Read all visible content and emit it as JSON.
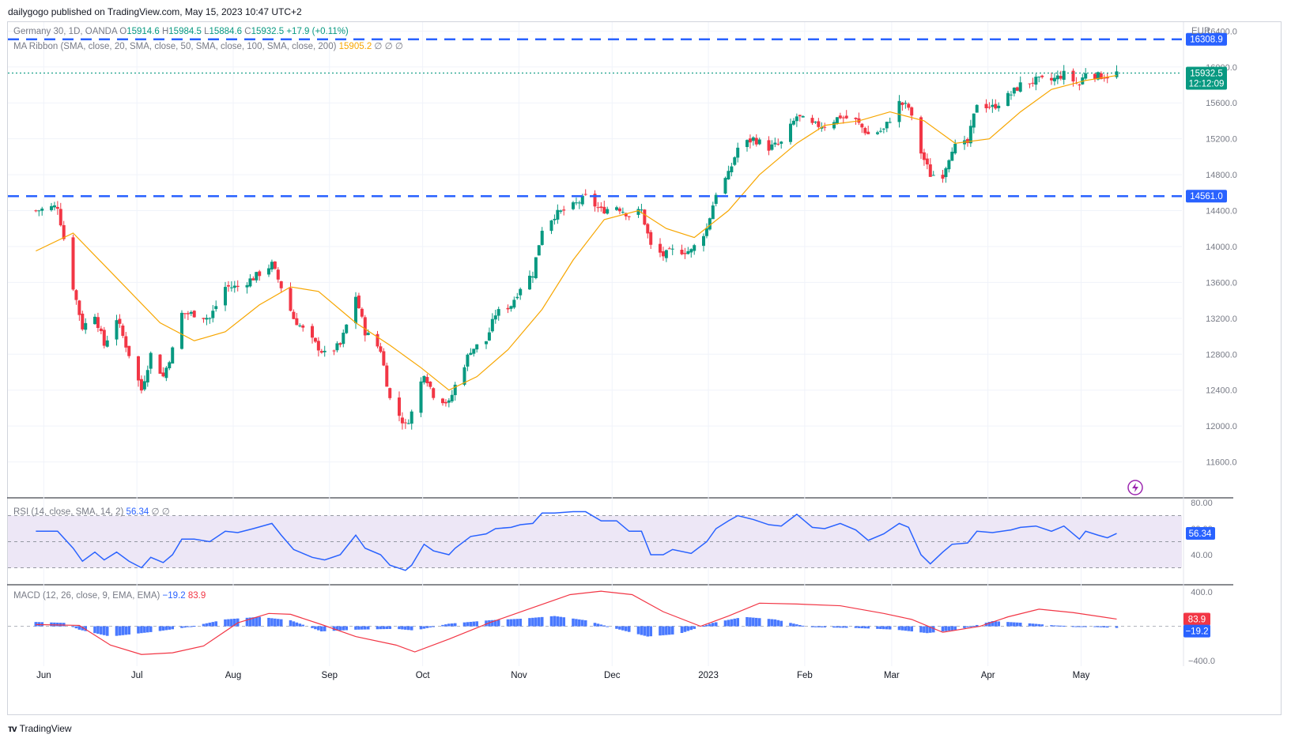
{
  "publish_line": "dailygogo published on TradingView.com, May 15, 2023 10:47 UTC+2",
  "footer_brand": "TradingView",
  "chart_data": {
    "type": "candlestick",
    "symbol_legend": {
      "name": "Germany 30, 1D, OANDA",
      "o_label": "O",
      "o": "15914.6",
      "h_label": "H",
      "h": "15984.5",
      "l_label": "L",
      "l": "15884.6",
      "c_label": "C",
      "c": "15932.5",
      "change": "+17.9 (+0.11%)"
    },
    "ma_legend": {
      "label": "MA Ribbon (SMA, close, 20, SMA, close, 50, SMA, close, 100, SMA, close, 200)",
      "value": "15905.2",
      "empties": "∅ ∅ ∅"
    },
    "currency": "EUR",
    "price_axis": {
      "min": 11200,
      "max": 16500,
      "ticks": [
        "16400.0",
        "16000.0",
        "15600.0",
        "15200.0",
        "14800.0",
        "14400.0",
        "14000.0",
        "13600.0",
        "13200.0",
        "12800.0",
        "12400.0",
        "12000.0",
        "11600.0"
      ]
    },
    "levels": [
      {
        "value": 16308.9,
        "label": "16308.9",
        "style": "dashed",
        "color": "#2962ff"
      },
      {
        "value": 14561.0,
        "label": "14561.0",
        "style": "dashed",
        "color": "#2962ff"
      }
    ],
    "last_price": {
      "value": 15932.5,
      "label": "15932.5",
      "countdown": "12:12:09",
      "color": "#089981"
    },
    "x_labels": [
      "Jun",
      "Jul",
      "Aug",
      "Sep",
      "Oct",
      "Nov",
      "Dec",
      "2023",
      "Feb",
      "Mar",
      "Apr",
      "May"
    ],
    "close_path": [
      [
        "2022-06-01",
        14400
      ],
      [
        "2022-06-08",
        14450
      ],
      [
        "2022-06-13",
        13550
      ],
      [
        "2022-06-16",
        13100
      ],
      [
        "2022-06-20",
        13250
      ],
      [
        "2022-06-23",
        12900
      ],
      [
        "2022-06-27",
        13200
      ],
      [
        "2022-07-01",
        12800
      ],
      [
        "2022-07-05",
        12400
      ],
      [
        "2022-07-08",
        12800
      ],
      [
        "2022-07-12",
        12550
      ],
      [
        "2022-07-15",
        12850
      ],
      [
        "2022-07-18",
        13250
      ],
      [
        "2022-07-22",
        13250
      ],
      [
        "2022-07-27",
        13200
      ],
      [
        "2022-08-01",
        13550
      ],
      [
        "2022-08-05",
        13550
      ],
      [
        "2022-08-10",
        13650
      ],
      [
        "2022-08-16",
        13800
      ],
      [
        "2022-08-19",
        13550
      ],
      [
        "2022-08-23",
        13200
      ],
      [
        "2022-08-29",
        12950
      ],
      [
        "2022-09-02",
        12800
      ],
      [
        "2022-09-07",
        12900
      ],
      [
        "2022-09-12",
        13450
      ],
      [
        "2022-09-15",
        13050
      ],
      [
        "2022-09-20",
        12850
      ],
      [
        "2022-09-23",
        12300
      ],
      [
        "2022-09-28",
        12000
      ],
      [
        "2022-09-30",
        12150
      ],
      [
        "2022-10-04",
        12600
      ],
      [
        "2022-10-07",
        12350
      ],
      [
        "2022-10-12",
        12250
      ],
      [
        "2022-10-14",
        12450
      ],
      [
        "2022-10-19",
        12850
      ],
      [
        "2022-10-24",
        12950
      ],
      [
        "2022-10-27",
        13250
      ],
      [
        "2022-11-01",
        13350
      ],
      [
        "2022-11-04",
        13550
      ],
      [
        "2022-11-08",
        13700
      ],
      [
        "2022-11-11",
        14200
      ],
      [
        "2022-11-15",
        14350
      ],
      [
        "2022-11-21",
        14450
      ],
      [
        "2022-11-25",
        14550
      ],
      [
        "2022-11-30",
        14400
      ],
      [
        "2022-12-05",
        14450
      ],
      [
        "2022-12-09",
        14350
      ],
      [
        "2022-12-13",
        14400
      ],
      [
        "2022-12-16",
        14000
      ],
      [
        "2022-12-20",
        13900
      ],
      [
        "2022-12-23",
        13950
      ],
      [
        "2022-12-29",
        13950
      ],
      [
        "2023-01-03",
        14200
      ],
      [
        "2023-01-06",
        14600
      ],
      [
        "2023-01-10",
        14800
      ],
      [
        "2023-01-13",
        15100
      ],
      [
        "2023-01-18",
        15200
      ],
      [
        "2023-01-23",
        15100
      ],
      [
        "2023-01-27",
        15150
      ],
      [
        "2023-02-01",
        15450
      ],
      [
        "2023-02-06",
        15350
      ],
      [
        "2023-02-10",
        15350
      ],
      [
        "2023-02-15",
        15450
      ],
      [
        "2023-02-20",
        15400
      ],
      [
        "2023-02-24",
        15250
      ],
      [
        "2023-03-01",
        15300
      ],
      [
        "2023-03-06",
        15600
      ],
      [
        "2023-03-09",
        15550
      ],
      [
        "2023-03-13",
        15050
      ],
      [
        "2023-03-16",
        14800
      ],
      [
        "2023-03-20",
        14800
      ],
      [
        "2023-03-23",
        15100
      ],
      [
        "2023-03-28",
        15150
      ],
      [
        "2023-03-31",
        15600
      ],
      [
        "2023-04-05",
        15550
      ],
      [
        "2023-04-11",
        15700
      ],
      [
        "2023-04-14",
        15800
      ],
      [
        "2023-04-19",
        15850
      ],
      [
        "2023-04-24",
        15850
      ],
      [
        "2023-04-28",
        15920
      ],
      [
        "2023-05-03",
        15800
      ],
      [
        "2023-05-05",
        15950
      ],
      [
        "2023-05-09",
        15900
      ],
      [
        "2023-05-12",
        15900
      ],
      [
        "2023-05-15",
        15932.5
      ]
    ],
    "sma20_path": [
      [
        "2022-06-01",
        13950
      ],
      [
        "2022-06-13",
        14150
      ],
      [
        "2022-06-27",
        13650
      ],
      [
        "2022-07-11",
        13150
      ],
      [
        "2022-07-22",
        12950
      ],
      [
        "2022-08-01",
        13050
      ],
      [
        "2022-08-12",
        13350
      ],
      [
        "2022-08-22",
        13550
      ],
      [
        "2022-08-31",
        13500
      ],
      [
        "2022-09-12",
        13150
      ],
      [
        "2022-09-23",
        12900
      ],
      [
        "2022-10-03",
        12650
      ],
      [
        "2022-10-12",
        12400
      ],
      [
        "2022-10-21",
        12550
      ],
      [
        "2022-10-31",
        12850
      ],
      [
        "2022-11-11",
        13300
      ],
      [
        "2022-11-21",
        13850
      ],
      [
        "2022-12-01",
        14300
      ],
      [
        "2022-12-12",
        14400
      ],
      [
        "2022-12-21",
        14200
      ],
      [
        "2022-12-30",
        14100
      ],
      [
        "2023-01-10",
        14400
      ],
      [
        "2023-01-20",
        14800
      ],
      [
        "2023-02-01",
        15150
      ],
      [
        "2023-02-10",
        15350
      ],
      [
        "2023-02-21",
        15400
      ],
      [
        "2023-03-03",
        15500
      ],
      [
        "2023-03-14",
        15400
      ],
      [
        "2023-03-24",
        15150
      ],
      [
        "2023-04-04",
        15200
      ],
      [
        "2023-04-14",
        15500
      ],
      [
        "2023-04-24",
        15750
      ],
      [
        "2023-05-05",
        15850
      ],
      [
        "2023-05-15",
        15905.2
      ]
    ],
    "rsi": {
      "legend": "RSI (14, close, SMA, 14, 2)",
      "value": "56.34",
      "empties": "∅ ∅",
      "range": [
        20,
        80
      ],
      "ticks": [
        "80.00",
        "60.00",
        "40.00"
      ],
      "levels": [
        70,
        50,
        30
      ],
      "path": [
        [
          "2022-06-01",
          58
        ],
        [
          "2022-06-08",
          58
        ],
        [
          "2022-06-13",
          45
        ],
        [
          "2022-06-16",
          35
        ],
        [
          "2022-06-20",
          42
        ],
        [
          "2022-06-23",
          36
        ],
        [
          "2022-06-27",
          42
        ],
        [
          "2022-07-01",
          35
        ],
        [
          "2022-07-05",
          30
        ],
        [
          "2022-07-08",
          38
        ],
        [
          "2022-07-12",
          34
        ],
        [
          "2022-07-15",
          40
        ],
        [
          "2022-07-18",
          52
        ],
        [
          "2022-07-22",
          52
        ],
        [
          "2022-07-27",
          50
        ],
        [
          "2022-08-01",
          58
        ],
        [
          "2022-08-05",
          57
        ],
        [
          "2022-08-10",
          60
        ],
        [
          "2022-08-16",
          64
        ],
        [
          "2022-08-19",
          55
        ],
        [
          "2022-08-23",
          44
        ],
        [
          "2022-08-29",
          38
        ],
        [
          "2022-09-02",
          36
        ],
        [
          "2022-09-07",
          40
        ],
        [
          "2022-09-12",
          55
        ],
        [
          "2022-09-15",
          45
        ],
        [
          "2022-09-20",
          40
        ],
        [
          "2022-09-23",
          32
        ],
        [
          "2022-09-28",
          28
        ],
        [
          "2022-09-30",
          32
        ],
        [
          "2022-10-04",
          48
        ],
        [
          "2022-10-07",
          43
        ],
        [
          "2022-10-12",
          40
        ],
        [
          "2022-10-14",
          45
        ],
        [
          "2022-10-19",
          54
        ],
        [
          "2022-10-24",
          56
        ],
        [
          "2022-10-27",
          60
        ],
        [
          "2022-11-01",
          61
        ],
        [
          "2022-11-04",
          63
        ],
        [
          "2022-11-08",
          64
        ],
        [
          "2022-11-11",
          72
        ],
        [
          "2022-11-15",
          72
        ],
        [
          "2022-11-21",
          73
        ],
        [
          "2022-11-25",
          73
        ],
        [
          "2022-11-30",
          66
        ],
        [
          "2022-12-05",
          66
        ],
        [
          "2022-12-09",
          58
        ],
        [
          "2022-12-13",
          58
        ],
        [
          "2022-12-16",
          40
        ],
        [
          "2022-12-20",
          40
        ],
        [
          "2022-12-23",
          44
        ],
        [
          "2022-12-29",
          41
        ],
        [
          "2023-01-03",
          50
        ],
        [
          "2023-01-06",
          60
        ],
        [
          "2023-01-10",
          66
        ],
        [
          "2023-01-13",
          70
        ],
        [
          "2023-01-18",
          67
        ],
        [
          "2023-01-23",
          63
        ],
        [
          "2023-01-27",
          62
        ],
        [
          "2023-02-01",
          71
        ],
        [
          "2023-02-06",
          61
        ],
        [
          "2023-02-10",
          60
        ],
        [
          "2023-02-15",
          64
        ],
        [
          "2023-02-20",
          59
        ],
        [
          "2023-02-24",
          51
        ],
        [
          "2023-03-01",
          56
        ],
        [
          "2023-03-06",
          64
        ],
        [
          "2023-03-09",
          61
        ],
        [
          "2023-03-13",
          40
        ],
        [
          "2023-03-16",
          33
        ],
        [
          "2023-03-20",
          42
        ],
        [
          "2023-03-23",
          48
        ],
        [
          "2023-03-28",
          49
        ],
        [
          "2023-03-31",
          58
        ],
        [
          "2023-04-05",
          57
        ],
        [
          "2023-04-11",
          59
        ],
        [
          "2023-04-14",
          61
        ],
        [
          "2023-04-19",
          62
        ],
        [
          "2023-04-24",
          58
        ],
        [
          "2023-04-28",
          62
        ],
        [
          "2023-05-03",
          52
        ],
        [
          "2023-05-05",
          58
        ],
        [
          "2023-05-09",
          55
        ],
        [
          "2023-05-12",
          53
        ],
        [
          "2023-05-15",
          56.34
        ]
      ]
    },
    "macd": {
      "legend": "MACD (12, 26, close, 9, EMA, EMA)",
      "macd_value": "−19.2",
      "signal_value": "83.9",
      "range": [
        -420,
        430
      ],
      "ticks": [
        "400.0",
        "−400.0"
      ],
      "signal_path": [
        [
          "2022-06-01",
          20
        ],
        [
          "2022-06-15",
          10
        ],
        [
          "2022-06-25",
          -220
        ],
        [
          "2022-07-05",
          -330
        ],
        [
          "2022-07-15",
          -310
        ],
        [
          "2022-07-25",
          -230
        ],
        [
          "2022-08-05",
          40
        ],
        [
          "2022-08-15",
          150
        ],
        [
          "2022-08-22",
          140
        ],
        [
          "2022-09-01",
          20
        ],
        [
          "2022-09-12",
          -120
        ],
        [
          "2022-09-25",
          -220
        ],
        [
          "2022-10-01",
          -300
        ],
        [
          "2022-10-12",
          -150
        ],
        [
          "2022-10-25",
          40
        ],
        [
          "2022-11-05",
          180
        ],
        [
          "2022-11-20",
          370
        ],
        [
          "2022-11-30",
          410
        ],
        [
          "2022-12-10",
          370
        ],
        [
          "2022-12-20",
          170
        ],
        [
          "2023-01-01",
          0
        ],
        [
          "2023-01-10",
          120
        ],
        [
          "2023-01-20",
          270
        ],
        [
          "2023-02-01",
          260
        ],
        [
          "2023-02-15",
          240
        ],
        [
          "2023-03-01",
          150
        ],
        [
          "2023-03-10",
          80
        ],
        [
          "2023-03-20",
          -70
        ],
        [
          "2023-04-01",
          0
        ],
        [
          "2023-04-10",
          110
        ],
        [
          "2023-04-20",
          200
        ],
        [
          "2023-05-01",
          160
        ],
        [
          "2023-05-15",
          83.9
        ]
      ],
      "hist_path": [
        [
          "2022-06-01",
          50
        ],
        [
          "2022-06-10",
          40
        ],
        [
          "2022-06-15",
          -40
        ],
        [
          "2022-06-25",
          -120
        ],
        [
          "2022-07-10",
          -60
        ],
        [
          "2022-07-20",
          -10
        ],
        [
          "2022-08-01",
          80
        ],
        [
          "2022-08-12",
          110
        ],
        [
          "2022-08-22",
          70
        ],
        [
          "2022-09-01",
          -60
        ],
        [
          "2022-09-12",
          -40
        ],
        [
          "2022-09-25",
          -30
        ],
        [
          "2022-10-01",
          -50
        ],
        [
          "2022-10-12",
          30
        ],
        [
          "2022-10-25",
          70
        ],
        [
          "2022-11-05",
          90
        ],
        [
          "2022-11-15",
          120
        ],
        [
          "2022-11-25",
          70
        ],
        [
          "2022-12-05",
          -30
        ],
        [
          "2022-12-15",
          -120
        ],
        [
          "2022-12-25",
          -90
        ],
        [
          "2023-01-05",
          40
        ],
        [
          "2023-01-15",
          110
        ],
        [
          "2023-01-25",
          80
        ],
        [
          "2023-02-05",
          -10
        ],
        [
          "2023-02-20",
          -20
        ],
        [
          "2023-03-05",
          -40
        ],
        [
          "2023-03-15",
          -80
        ],
        [
          "2023-03-25",
          -40
        ],
        [
          "2023-04-05",
          60
        ],
        [
          "2023-04-15",
          40
        ],
        [
          "2023-04-25",
          10
        ],
        [
          "2023-05-15",
          -19.2
        ]
      ]
    }
  },
  "colors": {
    "up": "#089981",
    "down": "#f23645",
    "sma20": "#f7a600",
    "rsi_line": "#2962ff",
    "rsi_bg": "#ede7f6",
    "macd_hist": "#2962ff",
    "signal": "#f23645",
    "grid": "#f0f3fa",
    "axis_text": "#787b86"
  }
}
